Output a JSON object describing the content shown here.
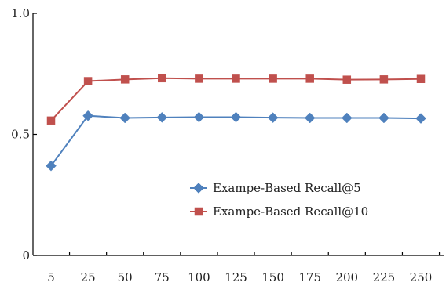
{
  "chart_data": {
    "type": "line",
    "title": "",
    "xlabel": "",
    "ylabel": "",
    "categories": [
      "5",
      "25",
      "50",
      "75",
      "100",
      "125",
      "150",
      "175",
      "200",
      "225",
      "250"
    ],
    "ylim": [
      0,
      1.0
    ],
    "yticks": [
      "0",
      "0.5",
      "1.0"
    ],
    "grid": false,
    "legend_position": "center-right",
    "series": [
      {
        "name": "Exampe-Based Recall@5",
        "marker": "diamond",
        "color": "#4F81BD",
        "values": [
          0.37,
          0.577,
          0.568,
          0.57,
          0.571,
          0.571,
          0.569,
          0.568,
          0.568,
          0.568,
          0.566
        ]
      },
      {
        "name": "Exampe-Based Recall@10",
        "marker": "square",
        "color": "#C0504D",
        "values": [
          0.557,
          0.72,
          0.727,
          0.732,
          0.73,
          0.73,
          0.73,
          0.73,
          0.726,
          0.727,
          0.729
        ]
      }
    ]
  }
}
